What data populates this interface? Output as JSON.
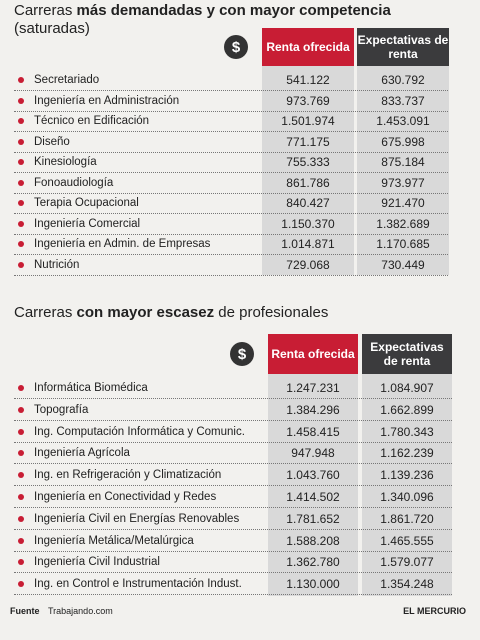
{
  "sections": [
    {
      "title": {
        "pre": "Carreras ",
        "bold": "más demandadas y con mayor competencia",
        "post": " (saturadas)"
      },
      "header": {
        "currency": "$",
        "offered": "Renta ofrecida",
        "expected": "Expectativas de renta"
      },
      "rows": [
        [
          "Secretariado",
          "541.122",
          "630.792"
        ],
        [
          "Ingeniería en Administración",
          "973.769",
          "833.737"
        ],
        [
          "Técnico en Edificación",
          "1.501.974",
          "1.453.091"
        ],
        [
          "Diseño",
          "771.175",
          "675.998"
        ],
        [
          "Kinesiología",
          "755.333",
          "875.184"
        ],
        [
          "Fonoaudiología",
          "861.786",
          "973.977"
        ],
        [
          "Terapia Ocupacional",
          "840.427",
          "921.470"
        ],
        [
          "Ingeniería Comercial",
          "1.150.370",
          "1.382.689"
        ],
        [
          "Ingeniería en Admin. de Empresas",
          "1.014.871",
          "1.170.685"
        ],
        [
          "Nutrición",
          "729.068",
          "730.449"
        ]
      ]
    },
    {
      "title": {
        "pre": "Carreras ",
        "bold": "con mayor escasez",
        "post": " de profesionales"
      },
      "header": {
        "currency": "$",
        "offered": "Renta ofrecida",
        "expected": "Expectativas de renta"
      },
      "rows": [
        [
          "Informática Biomédica",
          "1.247.231",
          "1.084.907"
        ],
        [
          "Topografía",
          "1.384.296",
          "1.662.899"
        ],
        [
          "Ing. Computación Informática y Comunic.",
          "1.458.415",
          "1.780.343"
        ],
        [
          "Ingeniería Agrícola",
          "947.948",
          "1.162.239"
        ],
        [
          "Ing. en Refrigeración y Climatización",
          "1.043.760",
          "1.139.236"
        ],
        [
          "Ingeniería en Conectividad y Redes",
          "1.414.502",
          "1.340.096"
        ],
        [
          "Ingeniería Civil en Energías Renovables",
          "1.781.652",
          "1.861.720"
        ],
        [
          "Ingeniería Metálica/Metalúrgica",
          "1.588.208",
          "1.465.555"
        ],
        [
          "Ingeniería Civil Industrial",
          "1.362.780",
          "1.579.077"
        ],
        [
          "Ing. en Control e Instrumentación Indust.",
          "1.130.000",
          "1.354.248"
        ]
      ]
    }
  ],
  "footer": {
    "label": "Fuente",
    "source": "Trabajando.com",
    "brand": "EL MERCURIO"
  }
}
